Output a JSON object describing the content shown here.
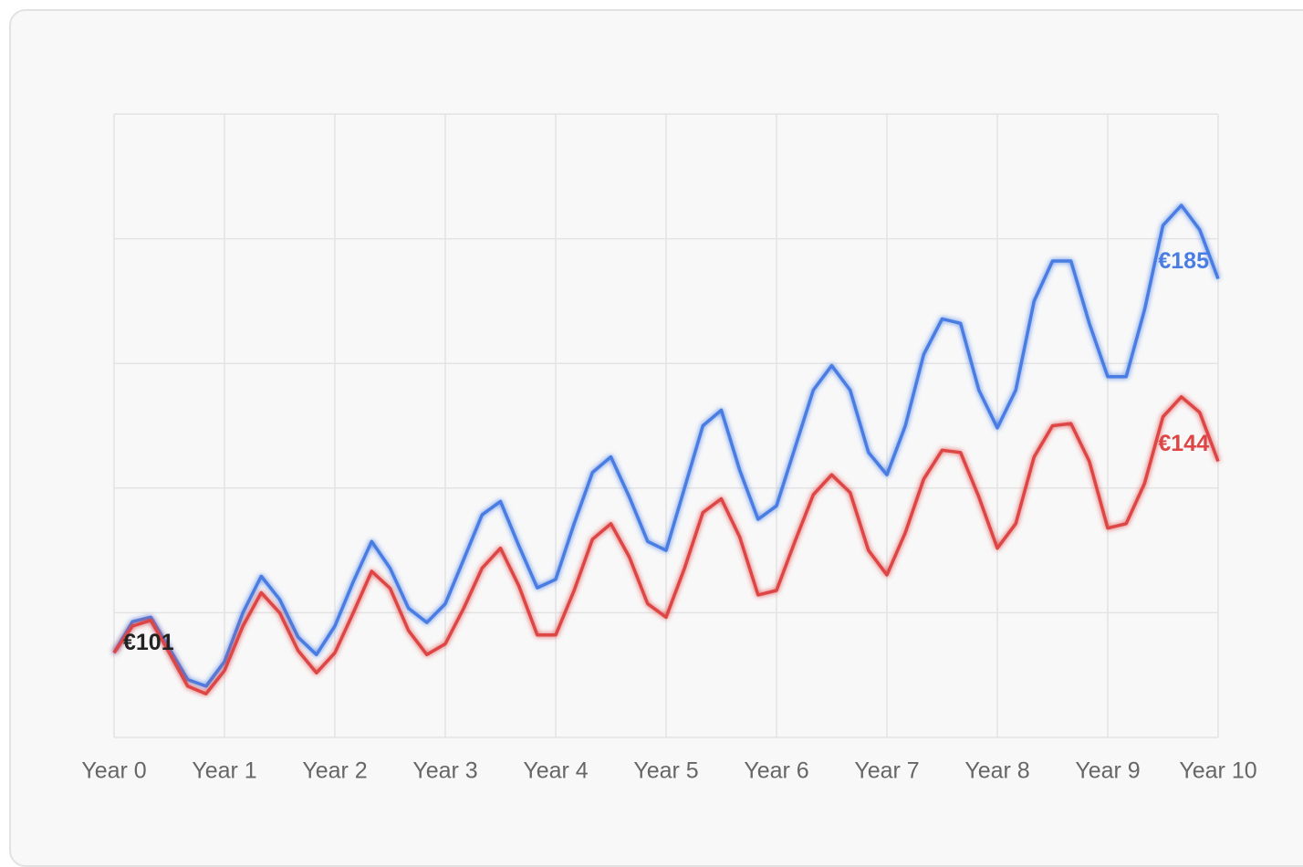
{
  "chart_data": {
    "type": "line",
    "first_label": "€101",
    "x": [
      0,
      0.167,
      0.333,
      0.5,
      0.667,
      0.833,
      1,
      1.167,
      1.333,
      1.5,
      1.667,
      1.833,
      2,
      2.167,
      2.333,
      2.5,
      2.667,
      2.833,
      3,
      3.167,
      3.333,
      3.5,
      3.667,
      3.833,
      4,
      4.167,
      4.333,
      4.5,
      4.667,
      4.833,
      5,
      5.167,
      5.333,
      5.5,
      5.667,
      5.833,
      6,
      6.167,
      6.333,
      6.5,
      6.667,
      6.833,
      7,
      7.167,
      7.333,
      7.5,
      7.667,
      7.833,
      8,
      8.167,
      8.333,
      8.5,
      8.667,
      8.833,
      9,
      9.167,
      9.333,
      9.5,
      9.667,
      9.833,
      10
    ],
    "series": [
      {
        "name": "blue",
        "color": "#4a7de3",
        "last_label": "€185",
        "values": [
          101,
          108,
          109,
          102,
          95,
          93.5,
          99,
          110,
          118.2,
          113,
          104.5,
          100.6,
          107,
          117,
          126,
          120,
          111,
          107.8,
          112,
          122,
          132,
          135,
          125,
          115.6,
          117.5,
          130,
          141.5,
          145,
          136,
          126,
          124,
          138,
          152,
          155.5,
          142,
          131,
          134,
          147,
          160,
          165.5,
          160,
          146,
          141,
          152,
          168,
          176,
          175,
          160,
          151.5,
          160,
          180,
          189,
          189,
          175,
          163,
          163,
          178,
          197,
          201.5,
          196,
          185
        ]
      },
      {
        "name": "red",
        "color": "#de4545",
        "last_label": "€144",
        "values": [
          101,
          107,
          108.3,
          101,
          93.5,
          91.8,
          97,
          107,
          114.5,
          110,
          101.5,
          96.5,
          101,
          110,
          119.3,
          115.5,
          106,
          100.6,
          103,
          111,
          120,
          124.5,
          116,
          105,
          105,
          115,
          126.5,
          130,
          122.5,
          112,
          109,
          120,
          132.5,
          135.6,
          127,
          114,
          115,
          126,
          136.5,
          141,
          137,
          124,
          118.5,
          128,
          140,
          146.5,
          146,
          136,
          124.5,
          130,
          145,
          152,
          152.5,
          144,
          129,
          130,
          139,
          154,
          158.5,
          155,
          144
        ]
      }
    ],
    "xlim": [
      0,
      10
    ],
    "xticks": [
      {
        "value": 0,
        "label": "Year 0"
      },
      {
        "value": 1,
        "label": "Year 1"
      },
      {
        "value": 2,
        "label": "Year 2"
      },
      {
        "value": 3,
        "label": "Year 3"
      },
      {
        "value": 4,
        "label": "Year 4"
      },
      {
        "value": 5,
        "label": "Year 5"
      },
      {
        "value": 6,
        "label": "Year 6"
      },
      {
        "value": 7,
        "label": "Year 7"
      },
      {
        "value": 8,
        "label": "Year 8"
      },
      {
        "value": 9,
        "label": "Year 9"
      },
      {
        "value": 10,
        "label": "Year 10"
      }
    ],
    "ylim": [
      82,
      222
    ],
    "yticks": [
      82,
      110,
      138,
      166,
      194,
      222
    ],
    "grid": true
  }
}
